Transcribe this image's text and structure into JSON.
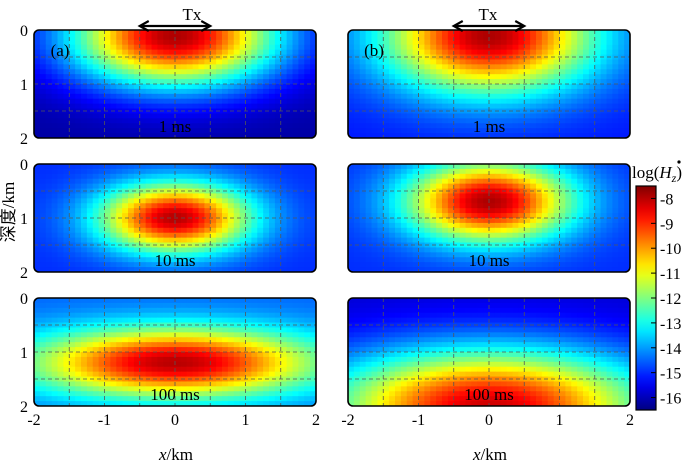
{
  "chart_data": {
    "type": "heatmap",
    "figure_layout": "3 rows x 2 columns of depth sections, shared colorbar",
    "tx_label": "Tx",
    "tx_extent_km": [
      -0.5,
      0.5
    ],
    "xlabel_var": "x",
    "xlabel_unit": "/km",
    "ylabel": "深度/km",
    "xlim": [
      -2,
      2
    ],
    "ylim": [
      0,
      2
    ],
    "y_inverted": true,
    "xticks": [
      "-2",
      "-1",
      "0",
      "1",
      "2"
    ],
    "yticks": [
      "0",
      "1",
      "2"
    ],
    "grid": "dashed, every 0.5 km",
    "colorbar": {
      "label": "log(Ḣz)",
      "label_main": "log(",
      "label_var": "H",
      "label_sub": "z",
      "label_close": ")",
      "range": [
        -16.5,
        -7.5
      ],
      "ticks": [
        "-8",
        "-9",
        "-10",
        "-11",
        "-12",
        "-13",
        "-14",
        "-15",
        "-16"
      ],
      "colormap": "jet"
    },
    "columns": [
      {
        "label": "(a)"
      },
      {
        "label": "(b)"
      }
    ],
    "panels": [
      {
        "col": 0,
        "row": 0,
        "time_label": "1 ms",
        "peak_depth_km": 0.1,
        "peak_value": -7.9,
        "decay_depth_km": 0.9,
        "spread_x_km": 1.4,
        "floor": -16.2
      },
      {
        "col": 1,
        "row": 0,
        "time_label": "1 ms",
        "peak_depth_km": 0.1,
        "peak_value": -7.9,
        "decay_depth_km": 1.0,
        "spread_x_km": 1.4,
        "floor": -15.2
      },
      {
        "col": 0,
        "row": 1,
        "time_label": "10 ms",
        "peak_depth_km": 1.0,
        "peak_value": -8.0,
        "decay_depth_km": 0.6,
        "spread_x_km": 1.0,
        "floor": -15.0
      },
      {
        "col": 1,
        "row": 1,
        "time_label": "10 ms",
        "peak_depth_km": 0.7,
        "peak_value": -7.9,
        "decay_depth_km": 0.7,
        "spread_x_km": 1.1,
        "floor": -15.0
      },
      {
        "col": 0,
        "row": 2,
        "time_label": "100 ms",
        "peak_depth_km": 1.2,
        "peak_value": -8.0,
        "decay_depth_km": 0.6,
        "spread_x_km": 1.9,
        "floor": -14.5
      },
      {
        "col": 1,
        "row": 2,
        "time_label": "100 ms",
        "peak_depth_km": 2.0,
        "peak_value": -8.2,
        "decay_depth_km": 1.0,
        "spread_x_km": 2.2,
        "floor": -15.8
      }
    ]
  }
}
